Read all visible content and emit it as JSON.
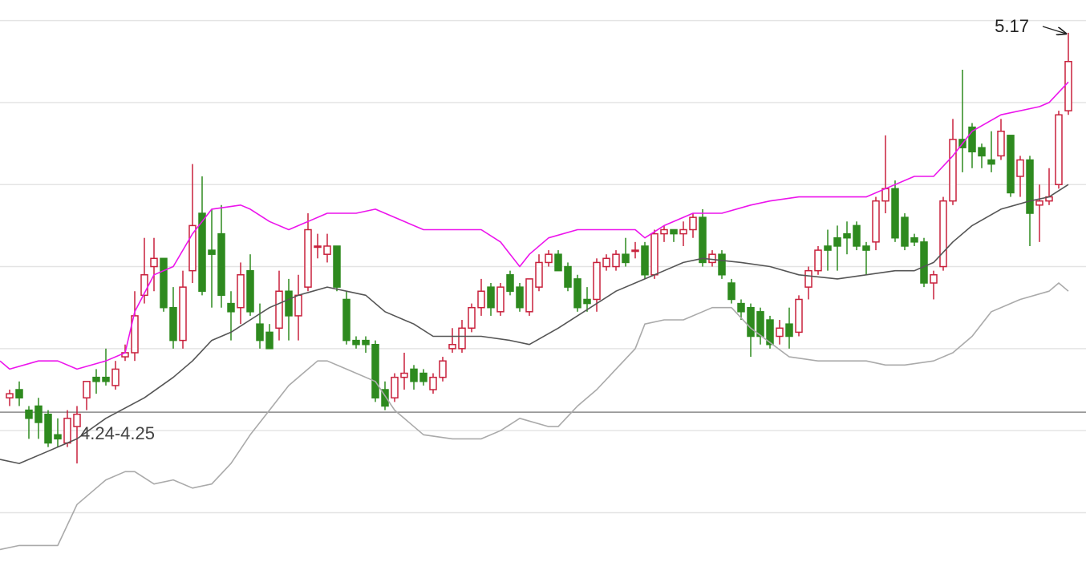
{
  "chart_data": {
    "type": "candlestick",
    "open": [
      4.28,
      4.3,
      4.25,
      4.26,
      4.24,
      4.19,
      4.17,
      4.21,
      4.28,
      4.33,
      4.33,
      4.31,
      4.38,
      4.39,
      4.53,
      4.6,
      4.62,
      4.5,
      4.42,
      4.59,
      4.73,
      4.64,
      4.68,
      4.51,
      4.5,
      4.59,
      4.46,
      4.44,
      4.45,
      4.54,
      4.48,
      4.55,
      4.65,
      4.63,
      4.65,
      4.52,
      4.42,
      4.42,
      4.41,
      4.3,
      4.28,
      4.33,
      4.35,
      4.34,
      4.3,
      4.33,
      4.4,
      4.4,
      4.45,
      4.5,
      4.55,
      4.49,
      4.58,
      4.55,
      4.49,
      4.55,
      4.61,
      4.63,
      4.6,
      4.57,
      4.52,
      4.52,
      4.6,
      4.6,
      4.63,
      4.64,
      4.65,
      4.58,
      4.68,
      4.69,
      4.68,
      4.69,
      4.72,
      4.61,
      4.63,
      4.56,
      4.51,
      4.5,
      4.49,
      4.47,
      4.43,
      4.46,
      4.44,
      4.55,
      4.59,
      4.65,
      4.67,
      4.68,
      4.7,
      4.65,
      4.66,
      4.76,
      4.79,
      4.72,
      4.67,
      4.66,
      4.56,
      4.6,
      4.76,
      4.91,
      4.94,
      4.89,
      4.86,
      4.87,
      4.92,
      4.82,
      4.86,
      4.75,
      4.76,
      4.8,
      4.98
    ],
    "high": [
      4.3,
      4.32,
      4.26,
      4.28,
      4.25,
      4.23,
      4.25,
      4.26,
      4.32,
      4.35,
      4.4,
      4.37,
      4.41,
      4.54,
      4.67,
      4.67,
      4.62,
      4.55,
      4.59,
      4.85,
      4.82,
      4.74,
      4.75,
      4.54,
      4.61,
      4.63,
      4.51,
      4.46,
      4.59,
      4.57,
      4.58,
      4.73,
      4.68,
      4.68,
      4.65,
      4.54,
      4.43,
      4.43,
      4.42,
      4.32,
      4.34,
      4.39,
      4.36,
      4.35,
      4.34,
      4.38,
      4.45,
      4.47,
      4.51,
      4.57,
      4.56,
      4.56,
      4.59,
      4.56,
      4.57,
      4.63,
      4.64,
      4.64,
      4.61,
      4.58,
      4.55,
      4.62,
      4.63,
      4.64,
      4.67,
      4.66,
      4.66,
      4.69,
      4.7,
      4.69,
      4.71,
      4.73,
      4.74,
      4.64,
      4.64,
      4.57,
      4.52,
      4.51,
      4.5,
      4.48,
      4.47,
      4.5,
      4.53,
      4.6,
      4.65,
      4.69,
      4.7,
      4.71,
      4.71,
      4.66,
      4.77,
      4.92,
      4.81,
      4.73,
      4.68,
      4.67,
      4.59,
      4.77,
      4.96,
      5.08,
      4.95,
      4.9,
      4.93,
      4.96,
      4.92,
      4.87,
      4.87,
      4.8,
      4.84,
      4.98,
      5.17
    ],
    "low": [
      4.26,
      4.26,
      4.18,
      4.18,
      4.16,
      4.16,
      4.16,
      4.12,
      4.25,
      4.29,
      4.31,
      4.3,
      4.37,
      4.37,
      4.51,
      4.54,
      4.49,
      4.4,
      4.4,
      4.56,
      4.53,
      4.5,
      4.5,
      4.42,
      4.46,
      4.48,
      4.4,
      4.4,
      4.42,
      4.42,
      4.42,
      4.54,
      4.62,
      4.61,
      4.54,
      4.41,
      4.4,
      4.39,
      4.27,
      4.25,
      4.27,
      4.3,
      4.3,
      4.31,
      4.29,
      4.32,
      4.39,
      4.39,
      4.44,
      4.48,
      4.48,
      4.48,
      4.53,
      4.49,
      4.48,
      4.54,
      4.6,
      4.59,
      4.54,
      4.49,
      4.49,
      4.49,
      4.59,
      4.59,
      4.6,
      4.62,
      4.57,
      4.57,
      4.66,
      4.66,
      4.65,
      4.67,
      4.6,
      4.6,
      4.57,
      4.51,
      4.47,
      4.38,
      4.41,
      4.4,
      4.41,
      4.4,
      4.43,
      4.52,
      4.58,
      4.59,
      4.59,
      4.63,
      4.64,
      4.58,
      4.64,
      4.73,
      4.66,
      4.64,
      4.65,
      4.55,
      4.52,
      4.59,
      4.75,
      4.83,
      4.84,
      4.84,
      4.83,
      4.86,
      4.77,
      4.77,
      4.65,
      4.66,
      4.75,
      4.79,
      4.97
    ],
    "close": [
      4.29,
      4.28,
      4.23,
      4.22,
      4.17,
      4.18,
      4.23,
      4.24,
      4.32,
      4.32,
      4.32,
      4.35,
      4.39,
      4.48,
      4.58,
      4.62,
      4.5,
      4.42,
      4.55,
      4.7,
      4.54,
      4.63,
      4.53,
      4.49,
      4.58,
      4.49,
      4.42,
      4.4,
      4.54,
      4.48,
      4.53,
      4.69,
      4.65,
      4.65,
      4.55,
      4.42,
      4.41,
      4.41,
      4.28,
      4.26,
      4.33,
      4.34,
      4.32,
      4.32,
      4.33,
      4.37,
      4.41,
      4.45,
      4.5,
      4.54,
      4.5,
      4.55,
      4.54,
      4.5,
      4.57,
      4.61,
      4.63,
      4.59,
      4.55,
      4.5,
      4.51,
      4.61,
      4.62,
      4.63,
      4.61,
      4.64,
      4.58,
      4.68,
      4.69,
      4.68,
      4.69,
      4.72,
      4.61,
      4.63,
      4.58,
      4.52,
      4.49,
      4.43,
      4.43,
      4.41,
      4.45,
      4.43,
      4.52,
      4.59,
      4.64,
      4.64,
      4.65,
      4.67,
      4.65,
      4.64,
      4.76,
      4.79,
      4.67,
      4.65,
      4.66,
      4.56,
      4.58,
      4.76,
      4.91,
      4.89,
      4.88,
      4.87,
      4.85,
      4.93,
      4.78,
      4.86,
      4.73,
      4.76,
      4.77,
      4.97,
      5.1
    ],
    "up_color": "#c8213c",
    "down_color": "#2e8a1f",
    "ylim": [
      3.87,
      5.25
    ],
    "yticks": [
      4,
      4.2,
      4.4,
      4.6,
      4.8,
      5,
      5.2
    ],
    "grid": true,
    "lines": [
      {
        "color": "#ec14ec",
        "x": [
          -1,
          0,
          3,
          5,
          7,
          10,
          12,
          13,
          15,
          17,
          19,
          21,
          24,
          25,
          27,
          29,
          31,
          33,
          36,
          38,
          40,
          43,
          47,
          49,
          51,
          53,
          54,
          56,
          59,
          65,
          66,
          68,
          71,
          74,
          77,
          79,
          82,
          86,
          89,
          91,
          94,
          96,
          98,
          100,
          103,
          107,
          108,
          110
        ],
        "values": [
          4.37,
          4.35,
          4.37,
          4.37,
          4.35,
          4.37,
          4.39,
          4.49,
          4.58,
          4.6,
          4.68,
          4.74,
          4.75,
          4.74,
          4.71,
          4.69,
          4.71,
          4.73,
          4.73,
          4.74,
          4.72,
          4.69,
          4.69,
          4.69,
          4.66,
          4.6,
          4.63,
          4.67,
          4.69,
          4.69,
          4.67,
          4.7,
          4.73,
          4.73,
          4.75,
          4.76,
          4.77,
          4.77,
          4.77,
          4.79,
          4.82,
          4.82,
          4.87,
          4.93,
          4.97,
          4.99,
          5.0,
          5.05
        ]
      },
      {
        "color": "#555555",
        "x": [
          -1,
          1,
          4,
          5,
          7,
          10,
          14,
          17,
          19,
          21,
          23,
          25,
          27,
          30,
          33,
          35,
          37,
          39,
          42,
          44,
          49,
          52,
          54,
          57,
          59,
          61,
          63,
          66,
          68,
          70,
          72,
          76,
          79,
          82,
          86,
          89,
          92,
          94,
          96,
          98,
          100,
          103,
          106,
          108,
          110
        ],
        "values": [
          4.13,
          4.12,
          4.15,
          4.16,
          4.18,
          4.23,
          4.28,
          4.33,
          4.37,
          4.42,
          4.44,
          4.47,
          4.5,
          4.53,
          4.55,
          4.54,
          4.53,
          4.49,
          4.46,
          4.43,
          4.43,
          4.42,
          4.41,
          4.45,
          4.48,
          4.51,
          4.54,
          4.57,
          4.59,
          4.61,
          4.62,
          4.61,
          4.6,
          4.58,
          4.57,
          4.58,
          4.59,
          4.59,
          4.61,
          4.66,
          4.7,
          4.74,
          4.76,
          4.77,
          4.8
        ]
      },
      {
        "color": "#aaaaaa",
        "x": [
          -1,
          1,
          4,
          5,
          7,
          10,
          12,
          13,
          15,
          17,
          19,
          21,
          23,
          25,
          27,
          29,
          31,
          32,
          33,
          35,
          38,
          40,
          43,
          46,
          49,
          51,
          53,
          56,
          57,
          59,
          61,
          65,
          66,
          68,
          70,
          72,
          73,
          75,
          77,
          81,
          84,
          89,
          91,
          93,
          96,
          98,
          100,
          102,
          105,
          108,
          109,
          110
        ],
        "values": [
          3.91,
          3.92,
          3.92,
          3.92,
          4.02,
          4.08,
          4.1,
          4.1,
          4.07,
          4.08,
          4.06,
          4.07,
          4.12,
          4.19,
          4.25,
          4.31,
          4.35,
          4.37,
          4.37,
          4.35,
          4.32,
          4.25,
          4.19,
          4.18,
          4.18,
          4.2,
          4.23,
          4.21,
          4.21,
          4.26,
          4.3,
          4.4,
          4.46,
          4.47,
          4.47,
          4.49,
          4.5,
          4.5,
          4.45,
          4.38,
          4.37,
          4.37,
          4.36,
          4.36,
          4.37,
          4.39,
          4.43,
          4.49,
          4.52,
          4.54,
          4.56,
          4.54
        ]
      }
    ],
    "reference_line": {
      "value": 4.245,
      "label": "4.24-4.25"
    },
    "annotations": [
      {
        "text": "5.17"
      }
    ]
  }
}
